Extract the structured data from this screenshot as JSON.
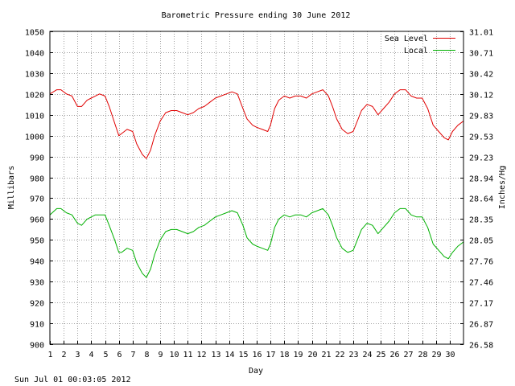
{
  "chart_data": {
    "type": "line",
    "title": "Barometric Pressure ending 30 June 2012",
    "xlabel": "Day",
    "ylabel": "Millibars",
    "y2label": "Inches/Hg",
    "xlim": [
      1,
      31
    ],
    "ylim": [
      900,
      1050
    ],
    "x_ticks": [
      "1",
      "2",
      "3",
      "4",
      "5",
      "6",
      "7",
      "8",
      "9",
      "10",
      "11",
      "12",
      "13",
      "14",
      "15",
      "16",
      "17",
      "18",
      "19",
      "20",
      "21",
      "22",
      "23",
      "24",
      "25",
      "26",
      "27",
      "28",
      "29",
      "30"
    ],
    "y_ticks": [
      "900",
      "910",
      "920",
      "930",
      "940",
      "950",
      "960",
      "970",
      "980",
      "990",
      "1000",
      "1010",
      "1020",
      "1030",
      "1040",
      "1050"
    ],
    "y2_ticks": [
      "26.58",
      "26.87",
      "27.17",
      "27.46",
      "27.76",
      "28.05",
      "28.35",
      "28.64",
      "28.94",
      "29.23",
      "29.53",
      "29.83",
      "30.12",
      "30.42",
      "30.71",
      "31.01"
    ],
    "grid": true,
    "legend_position": "top-right",
    "series": [
      {
        "name": "Sea Level",
        "color": "#e00000",
        "x": [
          1,
          1.5,
          1.8,
          2.2,
          2.6,
          3.0,
          3.3,
          3.7,
          4.0,
          4.3,
          4.6,
          5.0,
          5.3,
          5.7,
          6.0,
          6.2,
          6.6,
          7.0,
          7.3,
          7.7,
          8.0,
          8.3,
          8.6,
          9.0,
          9.4,
          9.8,
          10.2,
          10.6,
          11.0,
          11.4,
          11.8,
          12.2,
          12.6,
          13.0,
          13.4,
          13.8,
          14.2,
          14.6,
          15.0,
          15.3,
          15.7,
          16.0,
          16.4,
          16.8,
          17.0,
          17.3,
          17.6,
          18.0,
          18.4,
          18.8,
          19.2,
          19.6,
          20.0,
          20.4,
          20.8,
          21.2,
          21.5,
          21.8,
          22.2,
          22.6,
          23.0,
          23.3,
          23.6,
          24.0,
          24.4,
          24.8,
          25.2,
          25.6,
          26.0,
          26.4,
          26.8,
          27.2,
          27.6,
          28.0,
          28.4,
          28.8,
          29.2,
          29.6,
          29.9,
          30.2,
          30.6,
          31.0
        ],
        "values": [
          1020,
          1022,
          1022,
          1020,
          1019,
          1014,
          1014,
          1017,
          1018,
          1019,
          1020,
          1019,
          1014,
          1006,
          1000,
          1001,
          1003,
          1002,
          996,
          991,
          989,
          993,
          1000,
          1007,
          1011,
          1012,
          1012,
          1011,
          1010,
          1011,
          1013,
          1014,
          1016,
          1018,
          1019,
          1020,
          1021,
          1020,
          1013,
          1008,
          1005,
          1004,
          1003,
          1002,
          1005,
          1013,
          1017,
          1019,
          1018,
          1019,
          1019,
          1018,
          1020,
          1021,
          1022,
          1019,
          1014,
          1008,
          1003,
          1001,
          1002,
          1007,
          1012,
          1015,
          1014,
          1010,
          1013,
          1016,
          1020,
          1022,
          1022,
          1019,
          1018,
          1018,
          1013,
          1005,
          1002,
          999,
          998,
          1002,
          1005,
          1007
        ]
      },
      {
        "name": "Local",
        "color": "#00b000",
        "x": [
          1,
          1.5,
          1.8,
          2.2,
          2.6,
          3.0,
          3.3,
          3.7,
          4.0,
          4.3,
          4.6,
          5.0,
          5.3,
          5.7,
          6.0,
          6.2,
          6.6,
          7.0,
          7.3,
          7.7,
          8.0,
          8.3,
          8.6,
          9.0,
          9.4,
          9.8,
          10.2,
          10.6,
          11.0,
          11.4,
          11.8,
          12.2,
          12.6,
          13.0,
          13.4,
          13.8,
          14.2,
          14.6,
          15.0,
          15.3,
          15.7,
          16.0,
          16.4,
          16.8,
          17.0,
          17.3,
          17.6,
          18.0,
          18.4,
          18.8,
          19.2,
          19.6,
          20.0,
          20.4,
          20.8,
          21.2,
          21.5,
          21.8,
          22.2,
          22.6,
          23.0,
          23.3,
          23.6,
          24.0,
          24.4,
          24.8,
          25.2,
          25.6,
          26.0,
          26.4,
          26.8,
          27.2,
          27.6,
          28.0,
          28.4,
          28.8,
          29.2,
          29.6,
          29.9,
          30.2,
          30.6,
          31.0
        ],
        "values": [
          962,
          965,
          965,
          963,
          962,
          958,
          957,
          960,
          961,
          962,
          962,
          962,
          957,
          950,
          944,
          944,
          946,
          945,
          939,
          934,
          932,
          936,
          943,
          950,
          954,
          955,
          955,
          954,
          953,
          954,
          956,
          957,
          959,
          961,
          962,
          963,
          964,
          963,
          957,
          951,
          948,
          947,
          946,
          945,
          948,
          956,
          960,
          962,
          961,
          962,
          962,
          961,
          963,
          964,
          965,
          962,
          957,
          951,
          946,
          944,
          945,
          950,
          955,
          958,
          957,
          953,
          956,
          959,
          963,
          965,
          965,
          962,
          961,
          961,
          956,
          948,
          945,
          942,
          941,
          944,
          947,
          949
        ]
      }
    ]
  },
  "footer": {
    "timestamp": "Sun Jul 01 00:03:05 2012"
  }
}
